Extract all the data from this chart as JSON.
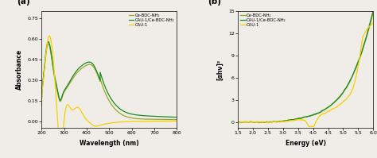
{
  "panel_a": {
    "xlabel": "Wavelength (nm)",
    "ylabel": "Absorbance",
    "xlim": [
      200,
      800
    ],
    "ylim": [
      -0.05,
      0.8
    ],
    "yticks": [
      0.0,
      0.15,
      0.3,
      0.45,
      0.6,
      0.75
    ],
    "xticks": [
      200,
      300,
      400,
      500,
      600,
      700,
      800
    ],
    "label": "(a)"
  },
  "panel_b": {
    "xlabel": "Energy (eV)",
    "ylabel": "[αhν]²",
    "xlim": [
      1.5,
      6.0
    ],
    "ylim": [
      -0.8,
      15
    ],
    "yticks": [
      0,
      3,
      6,
      9,
      12,
      15
    ],
    "xticks": [
      1.5,
      2.0,
      2.5,
      3.0,
      3.5,
      4.0,
      4.5,
      5.0,
      5.5,
      6.0
    ],
    "label": "(b)"
  },
  "colors": {
    "Ce_BDC_NH2": "#9aaa20",
    "CAU1_Ce_BDC_NH2": "#1a8a22",
    "CAU1": "#f5d000"
  },
  "legend_labels": [
    "Ce-BDC-NH₂",
    "CAU-1/Ce-BDC-NH₂",
    "CAU-1"
  ],
  "bg_color": "#f0ede8",
  "plot_bg": "#f0ede8"
}
